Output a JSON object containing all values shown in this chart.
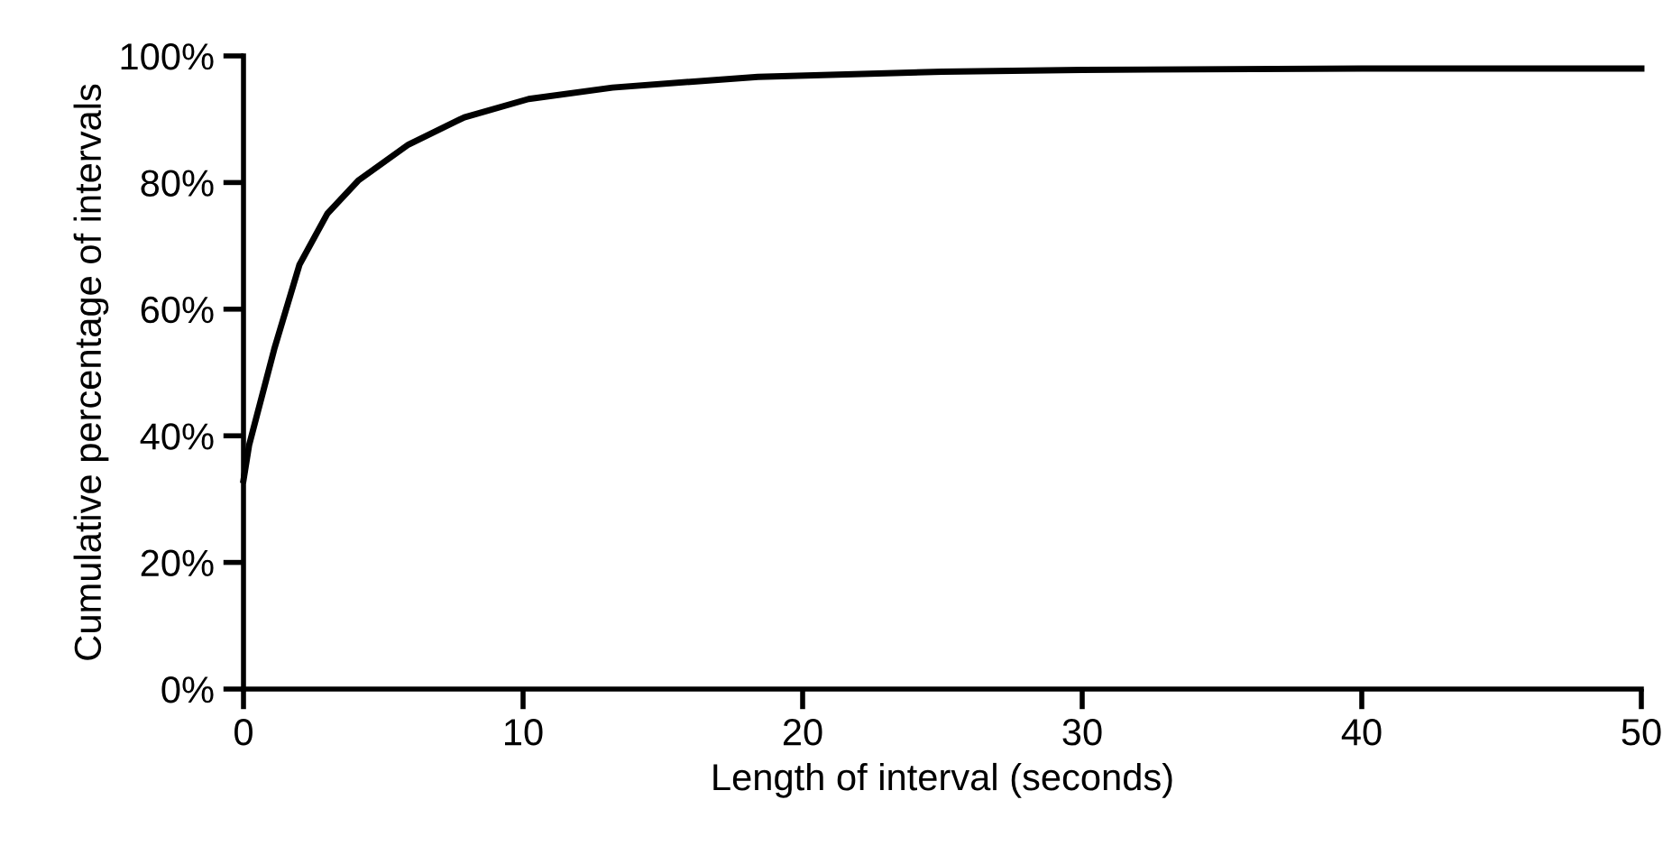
{
  "chart_data": {
    "type": "line",
    "xlabel": "Length of interval (seconds)",
    "ylabel": "Cumulative percentage of intervals",
    "x": [
      0,
      0.2,
      1.1,
      2,
      3,
      4.1,
      5.9,
      7.9,
      10.2,
      13.2,
      18.4,
      25,
      30,
      40,
      50
    ],
    "series": [
      {
        "color": "#000000",
        "values": [
          33,
          38.5,
          53.7,
          67,
          75.1,
          80.3,
          86,
          90.3,
          93.2,
          95,
          96.7,
          97.5,
          97.8,
          98,
          98
        ]
      }
    ],
    "xlim": [
      0,
      50
    ],
    "xticks": [
      0,
      10,
      20,
      30,
      40,
      50
    ],
    "ylim": [
      0,
      100
    ],
    "yticks": [
      {
        "value": 0,
        "label": "0%"
      },
      {
        "value": 20,
        "label": "20%"
      },
      {
        "value": 40,
        "label": "40%"
      },
      {
        "value": 60,
        "label": "60%"
      },
      {
        "value": 80,
        "label": "80%"
      },
      {
        "value": 100,
        "label": "100%"
      }
    ],
    "grid": false,
    "marker": "none",
    "line_style": "solid"
  }
}
